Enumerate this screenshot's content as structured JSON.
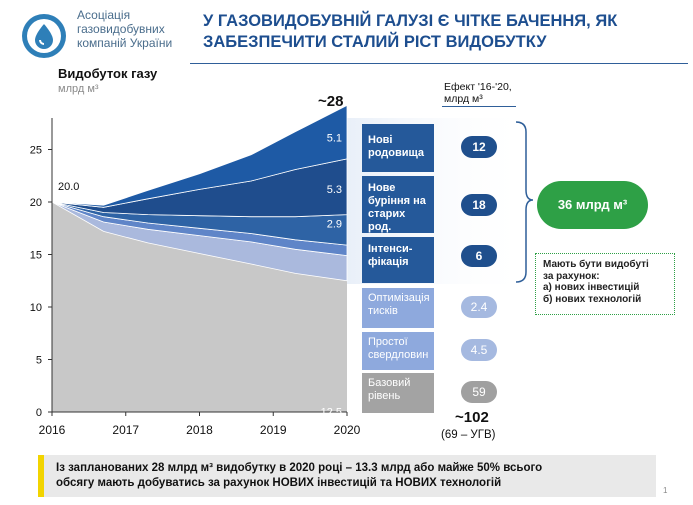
{
  "brand": {
    "logo_lines": [
      "Асоціація",
      "газовидобувних",
      "компаній України"
    ]
  },
  "header": {
    "title_lines": [
      "У ГАЗОВИДОБУВНІЙ ГАЛУЗІ Є ЧІТКЕ БАЧЕННЯ, ЯК",
      "ЗАБЕЗПЕЧИТИ СТАЛИЙ РІСТ ВИДОБУТКУ"
    ]
  },
  "chart_data": {
    "type": "area",
    "title": "Видобуток газу",
    "ylabel": "млрд м³",
    "x_ticks": [
      "2016",
      "2017",
      "2018",
      "2019",
      "2020"
    ],
    "y_ticks": [
      0,
      5,
      10,
      15,
      20,
      25
    ],
    "ylim": [
      0,
      28
    ],
    "x": [
      2016,
      2016.7,
      2017.3,
      2018,
      2018.7,
      2019.3,
      2020
    ],
    "series": [
      {
        "name": "Базовий рівень",
        "color": "#c8c8c8",
        "values": [
          20.0,
          17.2,
          16.1,
          15.1,
          14.1,
          13.2,
          12.5
        ]
      },
      {
        "name": "Простої свердловин",
        "color": "#aab9dd",
        "values": [
          0,
          0.9,
          1.3,
          1.7,
          2.1,
          2.3,
          2.4
        ]
      },
      {
        "name": "Оптимізація тисків",
        "color": "#5f85c8",
        "values": [
          0,
          0.5,
          0.6,
          0.7,
          0.8,
          0.9,
          1.0
        ]
      },
      {
        "name": "Інтенси-фікація",
        "color": "#2e63a5",
        "values": [
          0,
          0.4,
          0.8,
          1.2,
          1.6,
          2.2,
          2.9
        ]
      },
      {
        "name": "Нове буріння на старих род.",
        "color": "#1f4d8d",
        "values": [
          0,
          0.5,
          1.5,
          2.5,
          3.4,
          4.5,
          5.3
        ]
      },
      {
        "name": "Нові родовища",
        "color": "#1e5aa5",
        "values": [
          0,
          0.2,
          0.8,
          1.5,
          2.5,
          3.6,
          5.1
        ]
      }
    ],
    "annotations": {
      "start_value": "20.0",
      "total_2020": "~28",
      "labels_2020": [
        "5.1",
        "5.3",
        "2.9",
        "12.5"
      ]
    }
  },
  "effect_header_lines": [
    "Ефект '16-'20,",
    "млрд м³"
  ],
  "levers": [
    {
      "lines": [
        "Нові",
        "родовища"
      ],
      "effect": "12",
      "style": "dark"
    },
    {
      "lines": [
        "Нове",
        "буріння на",
        "старих род."
      ],
      "effect": "18",
      "style": "dark"
    },
    {
      "lines": [
        "Інтенси-",
        "фікація"
      ],
      "effect": "6",
      "style": "dark"
    },
    {
      "lines": [
        "Оптимізація",
        "тисків"
      ],
      "effect": "2.4",
      "style": "mid"
    },
    {
      "lines": [
        "Простої",
        "свердловин"
      ],
      "effect": "4.5",
      "style": "mid"
    },
    {
      "lines": [
        "Базовий",
        "рівень"
      ],
      "effect": "59",
      "style": "gray"
    }
  ],
  "result": {
    "value": "36 млрд м³"
  },
  "note_lines": [
    "Мають бути видобуті",
    "за рахунок:",
    "а) нових інвестицій",
    "б) нових технологій"
  ],
  "bottom": {
    "total": "~102",
    "sub": "(69 – УГВ)"
  },
  "banner_lines": [
    "Із запланованих 28 млрд м³ видобутку в 2020 році – 13.3 млрд або майже 50% всього",
    "обсягу мають добуватись за рахунок НОВИХ інвестицій та НОВИХ технологій"
  ],
  "page_number": "1",
  "colors": {
    "brand_blue": "#1d4e8f",
    "accent_green": "#2ea046",
    "banner_yellow": "#f2d400"
  }
}
